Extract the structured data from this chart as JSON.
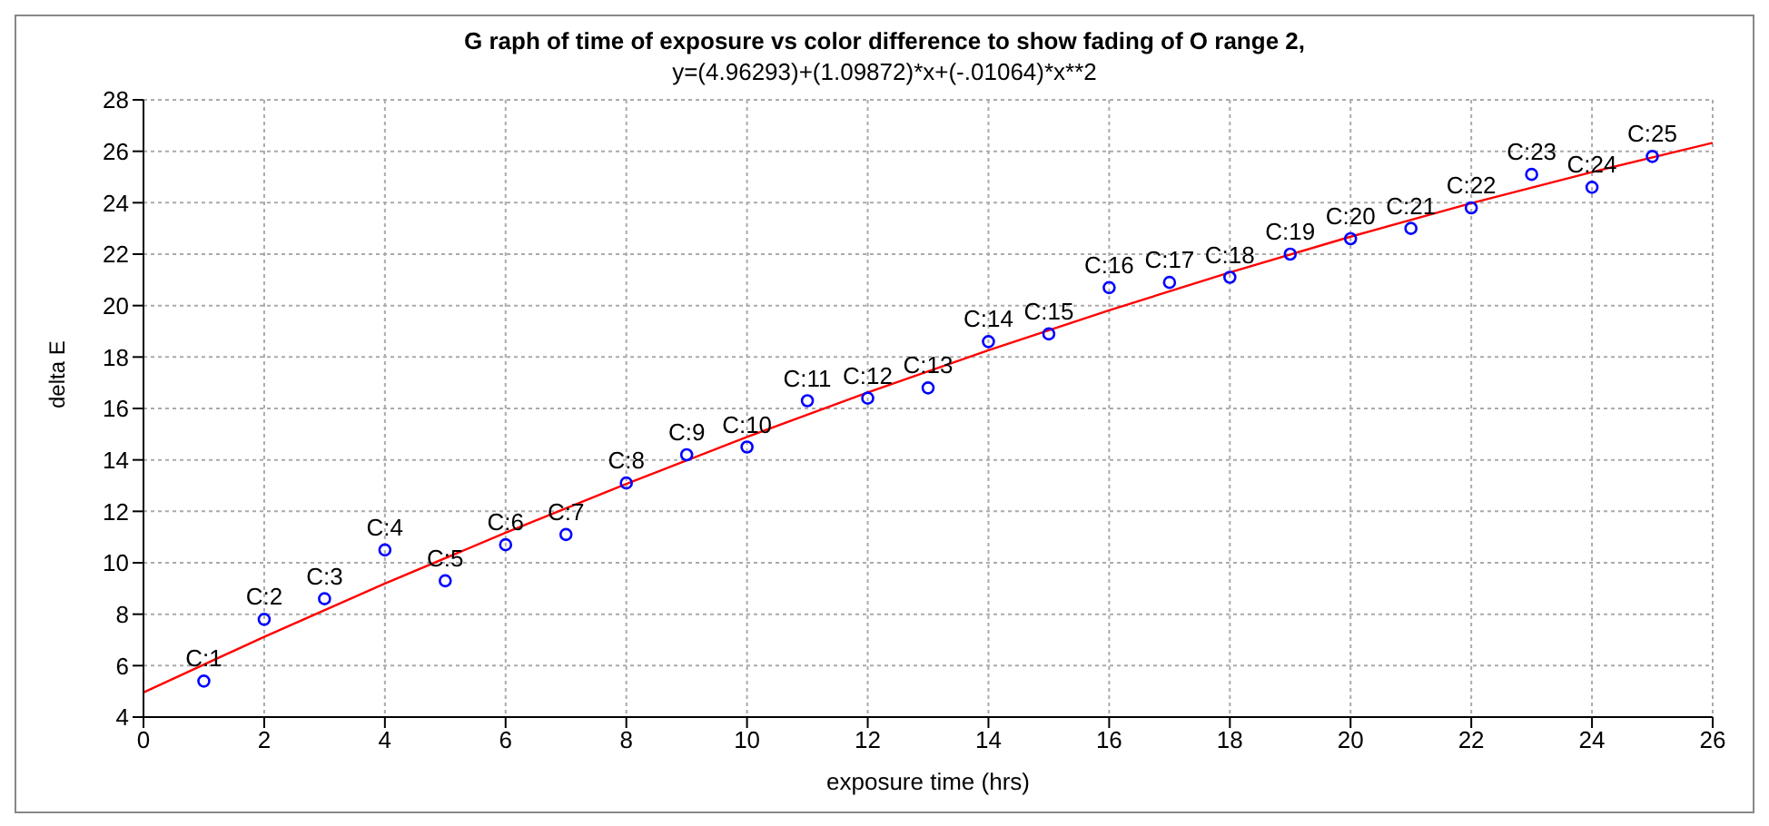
{
  "chart_data": {
    "type": "scatter",
    "title": "G raph of time of exposure vs color difference to show fading of O range 2,",
    "subtitle": "y=(4.96293)+(1.09872)*x+(-.01064)*x**2",
    "xlabel": "exposure time (hrs)",
    "ylabel": "delta E",
    "xlim": [
      0,
      26
    ],
    "xticks": [
      0,
      2,
      4,
      6,
      8,
      10,
      12,
      14,
      16,
      18,
      20,
      22,
      24,
      26
    ],
    "ylim": [
      4,
      28
    ],
    "yticks": [
      4,
      6,
      8,
      10,
      12,
      14,
      16,
      18,
      20,
      22,
      24,
      26,
      28
    ],
    "grid": true,
    "legend": false,
    "series": [
      {
        "color": "#0000ff",
        "marker": "circle",
        "x": [
          1,
          2,
          3,
          4,
          5,
          6,
          7,
          8,
          9,
          10,
          11,
          12,
          13,
          14,
          15,
          16,
          17,
          18,
          19,
          20,
          21,
          22,
          23,
          24,
          25
        ],
        "values": [
          5.4,
          7.8,
          8.6,
          10.5,
          9.3,
          10.7,
          11.1,
          13.1,
          14.2,
          14.5,
          16.3,
          16.4,
          16.8,
          18.6,
          18.9,
          20.7,
          20.9,
          21.1,
          22.0,
          22.6,
          23.0,
          23.8,
          25.1,
          24.6,
          25.8
        ]
      },
      {
        "type": "line",
        "color": "#ff0000",
        "marker": "none",
        "line_style": "solid",
        "x": [
          0,
          2,
          4,
          6,
          8,
          10,
          12,
          14,
          16,
          18,
          20,
          22,
          24,
          26
        ],
        "values": [
          4.96,
          7.12,
          9.19,
          11.17,
          13.07,
          14.89,
          16.62,
          18.26,
          19.82,
          21.29,
          22.68,
          23.98,
          25.19,
          26.33
        ]
      }
    ],
    "annotations": [
      {
        "text": "C:1",
        "x": 1,
        "y": 5.4
      },
      {
        "text": "C:2",
        "x": 2,
        "y": 7.8
      },
      {
        "text": "C:3",
        "x": 3,
        "y": 8.6
      },
      {
        "text": "C:4",
        "x": 4,
        "y": 10.5
      },
      {
        "text": "C:5",
        "x": 5,
        "y": 9.3
      },
      {
        "text": "C:6",
        "x": 6,
        "y": 10.7
      },
      {
        "text": "C:7",
        "x": 7,
        "y": 11.1
      },
      {
        "text": "C:8",
        "x": 8,
        "y": 13.1
      },
      {
        "text": "C:9",
        "x": 9,
        "y": 14.2
      },
      {
        "text": "C:10",
        "x": 10,
        "y": 14.5
      },
      {
        "text": "C:11",
        "x": 11,
        "y": 16.3
      },
      {
        "text": "C:12",
        "x": 12,
        "y": 16.4
      },
      {
        "text": "C:13",
        "x": 13,
        "y": 16.8
      },
      {
        "text": "C:14",
        "x": 14,
        "y": 18.6
      },
      {
        "text": "C:15",
        "x": 15,
        "y": 18.9
      },
      {
        "text": "C:16",
        "x": 16,
        "y": 20.7
      },
      {
        "text": "C:17",
        "x": 17,
        "y": 20.9
      },
      {
        "text": "C:18",
        "x": 18,
        "y": 21.1
      },
      {
        "text": "C:19",
        "x": 19,
        "y": 22.0
      },
      {
        "text": "C:20",
        "x": 20,
        "y": 22.6
      },
      {
        "text": "C:21",
        "x": 21,
        "y": 23.0
      },
      {
        "text": "C:22",
        "x": 22,
        "y": 23.8
      },
      {
        "text": "C:23",
        "x": 23,
        "y": 25.1
      },
      {
        "text": "C:24",
        "x": 24,
        "y": 24.6
      },
      {
        "text": "C:25",
        "x": 25,
        "y": 25.8
      }
    ]
  }
}
